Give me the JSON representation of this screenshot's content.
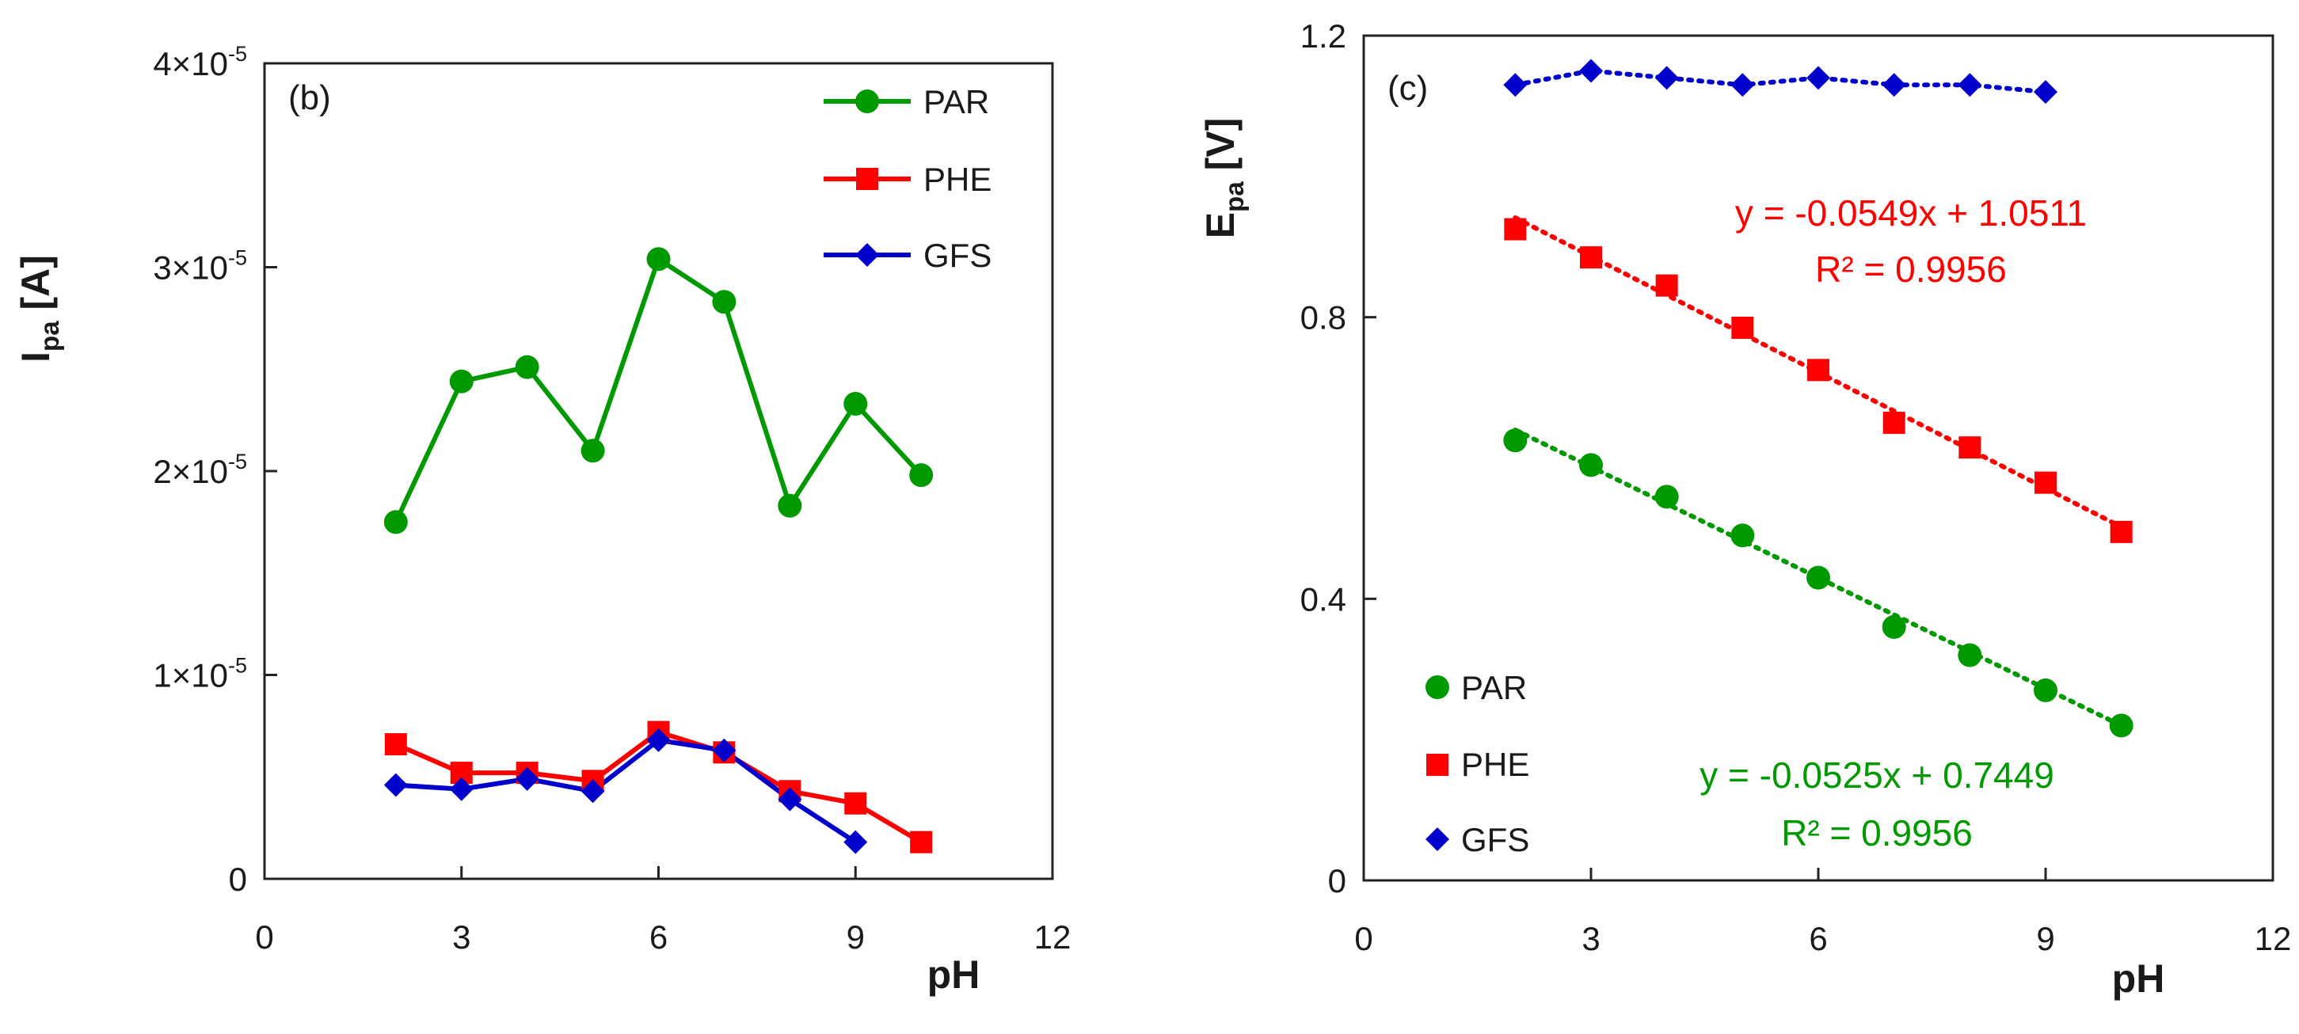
{
  "chart_data": [
    {
      "type": "line",
      "panel_label": "(b)",
      "ylabel_main": "I",
      "ylabel_sub": "pa",
      "ylabel_unit": " [A]",
      "xlabel": "pH",
      "xlim": [
        0,
        12
      ],
      "ylim": [
        0,
        4e-05
      ],
      "xticks": [
        0,
        3,
        6,
        9,
        12
      ],
      "xtick_labels": [
        "0",
        "3",
        "6",
        "9",
        "12"
      ],
      "yticks": [
        0,
        1e-05,
        2e-05,
        3e-05,
        4e-05
      ],
      "ytick_labels": [
        {
          "mant": "0",
          "exp": ""
        },
        {
          "mant": "1×10",
          "exp": "-5"
        },
        {
          "mant": "2×10",
          "exp": "-5"
        },
        {
          "mant": "3×10",
          "exp": "-5"
        },
        {
          "mant": "4×10",
          "exp": "-5"
        }
      ],
      "legend_position": "top-right",
      "series": [
        {
          "name": "PAR",
          "color": "#009900",
          "marker": "circle",
          "line": "solid",
          "x": [
            2,
            3,
            4,
            5,
            6,
            7,
            8,
            9,
            10
          ],
          "y": [
            1.75e-05,
            2.44e-05,
            2.51e-05,
            2.1e-05,
            3.04e-05,
            2.83e-05,
            1.83e-05,
            2.33e-05,
            1.98e-05
          ]
        },
        {
          "name": "PHE",
          "color": "#ff0000",
          "marker": "square",
          "line": "solid",
          "x": [
            2,
            3,
            4,
            5,
            6,
            7,
            8,
            9,
            10
          ],
          "y": [
            6.6e-06,
            5.2e-06,
            5.2e-06,
            4.8e-06,
            7.2e-06,
            6.2e-06,
            4.3e-06,
            3.7e-06,
            1.8e-06
          ]
        },
        {
          "name": "GFS",
          "color": "#0000cc",
          "marker": "diamond",
          "line": "solid",
          "x": [
            2,
            3,
            4,
            5,
            6,
            7,
            8,
            9
          ],
          "y": [
            4.6e-06,
            4.4e-06,
            4.9e-06,
            4.3e-06,
            6.8e-06,
            6.3e-06,
            3.9e-06,
            1.8e-06
          ]
        }
      ]
    },
    {
      "type": "scatter",
      "panel_label": "(c)",
      "ylabel_main": "E",
      "ylabel_sub": "pa",
      "ylabel_unit": " [V]",
      "xlabel": "pH",
      "xlim": [
        0,
        12
      ],
      "ylim": [
        0,
        1.2
      ],
      "xticks": [
        0,
        3,
        6,
        9,
        12
      ],
      "xtick_labels": [
        "0",
        "3",
        "6",
        "9",
        "12"
      ],
      "yticks": [
        0,
        0.4,
        0.8,
        1.2
      ],
      "ytick_labels": [
        "0",
        "0.4",
        "0.8",
        "1.2"
      ],
      "legend_position": "bottom-left",
      "series": [
        {
          "name": "PAR",
          "color": "#009900",
          "marker": "circle",
          "line": "dotted-trend",
          "x": [
            2,
            3,
            4,
            5,
            6,
            7,
            8,
            9,
            10
          ],
          "y": [
            0.625,
            0.59,
            0.545,
            0.49,
            0.43,
            0.36,
            0.32,
            0.27,
            0.22
          ],
          "trend": {
            "slope": -0.0525,
            "intercept": 0.7449,
            "x_range": [
              2,
              10
            ]
          },
          "equation": "y = -0.0525x + 0.7449",
          "r2": "R² = 0.9956"
        },
        {
          "name": "PHE",
          "color": "#ff0000",
          "marker": "square",
          "line": "dotted-trend",
          "x": [
            2,
            3,
            4,
            5,
            6,
            7,
            8,
            9,
            10
          ],
          "y": [
            0.925,
            0.885,
            0.845,
            0.785,
            0.725,
            0.65,
            0.615,
            0.565,
            0.495
          ],
          "trend": {
            "slope": -0.0549,
            "intercept": 1.0511,
            "x_range": [
              2,
              10
            ]
          },
          "equation": "y = -0.0549x + 1.0511",
          "r2": "R² = 0.9956"
        },
        {
          "name": "GFS",
          "color": "#0000cc",
          "marker": "diamond",
          "line": "dotted-connect",
          "x": [
            2,
            3,
            4,
            5,
            6,
            7,
            8,
            9
          ],
          "y": [
            1.13,
            1.15,
            1.14,
            1.13,
            1.14,
            1.13,
            1.13,
            1.12
          ]
        }
      ]
    }
  ]
}
